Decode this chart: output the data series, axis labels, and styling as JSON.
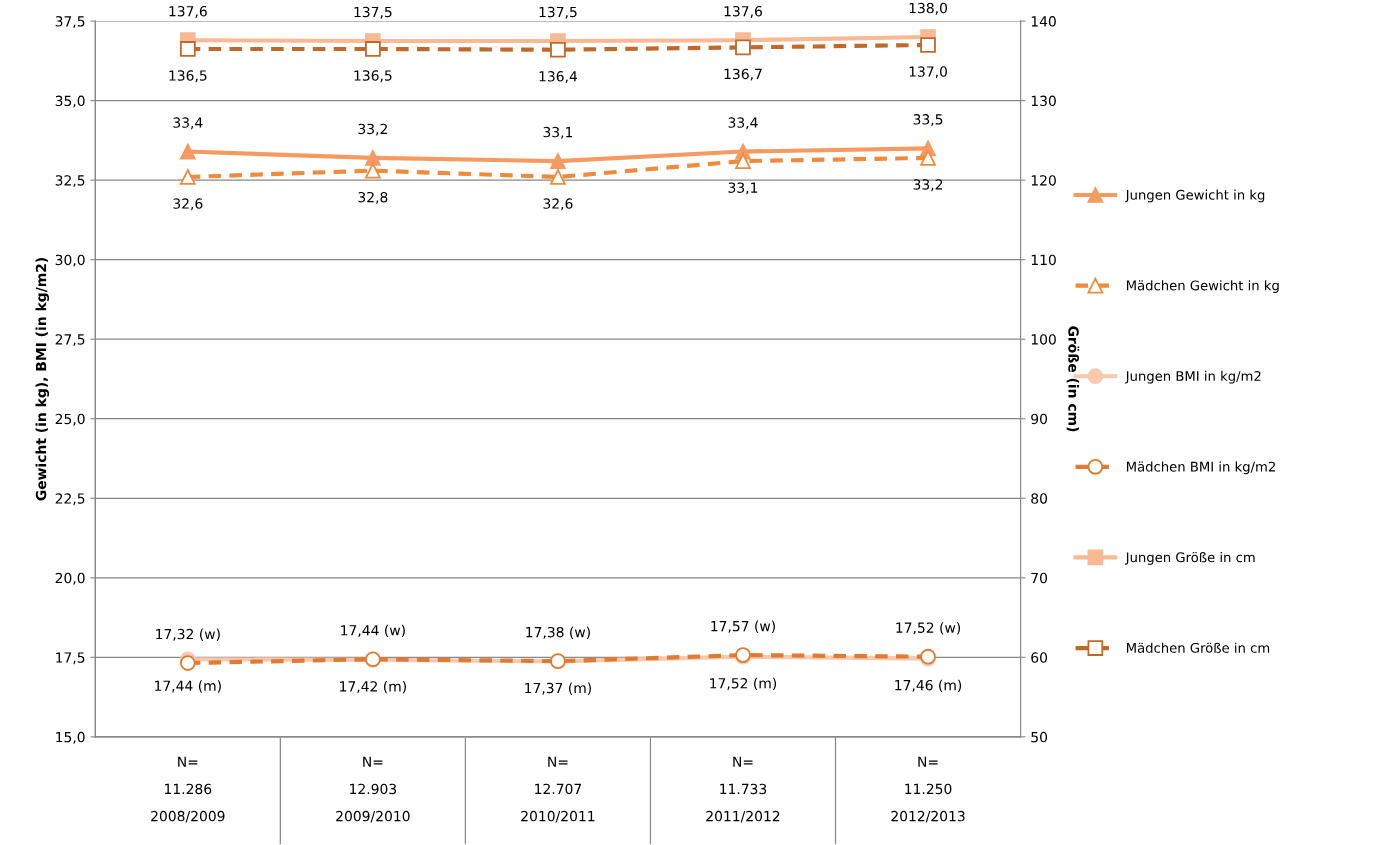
{
  "chart_data": {
    "type": "line",
    "ylabel": "Gewicht (in kg), BMI (in kg/m2)",
    "y2label": "Größe (in cm)",
    "categories": [
      "N=\n11.286\n2008/2009",
      "N=\n12.903\n2009/2010",
      "N=\n12.707\n2010/2011",
      "N=\n11.733\n2011/2012",
      "N=\n11.250\n2012/2013"
    ],
    "ylim": [
      15,
      37.5
    ],
    "yticks": [
      {
        "value": 15,
        "label": "15,0"
      },
      {
        "value": 17.5,
        "label": "17,5"
      },
      {
        "value": 20,
        "label": "20,0"
      },
      {
        "value": 22.5,
        "label": "22,5"
      },
      {
        "value": 25,
        "label": "25,0"
      },
      {
        "value": 27.5,
        "label": "27,5"
      },
      {
        "value": 30,
        "label": "30,0"
      },
      {
        "value": 32.5,
        "label": "32,5"
      },
      {
        "value": 35,
        "label": "35,0"
      },
      {
        "value": 37.5,
        "label": "37,5"
      }
    ],
    "y2lim": [
      50,
      140
    ],
    "y2ticks": [
      50,
      60,
      70,
      80,
      90,
      100,
      110,
      120,
      130,
      140
    ],
    "grid": "y",
    "legend": "right",
    "series": [
      {
        "name": "Jungen Gewicht in kg",
        "color": "#f59b62",
        "marker": "triangle",
        "line_style": "solid",
        "values": [
          33.4,
          33.2,
          33.1,
          33.4,
          33.5
        ],
        "value_labels": [
          "33,4",
          "33,2",
          "33,1",
          "33,4",
          "33,5"
        ]
      },
      {
        "name": "Mädchen Gewicht in kg",
        "color": "#f08a3c",
        "marker": "triangle",
        "line_style": "dashed",
        "values": [
          32.6,
          32.8,
          32.6,
          33.1,
          33.2
        ],
        "value_labels": [
          "32,6",
          "32,8",
          "32,6",
          "33,1",
          "33,2"
        ]
      },
      {
        "name": "Jungen BMI in kg/m2",
        "color": "#f9c9ae",
        "marker": "circle",
        "line_style": "solid",
        "values": [
          17.44,
          17.42,
          17.37,
          17.52,
          17.46
        ],
        "value_labels": [
          "17,44 (m)",
          "17,42 (m)",
          "17,37 (m)",
          "17,52 (m)",
          "17,46 (m)"
        ]
      },
      {
        "name": "Mädchen BMI in kg/m2",
        "color": "#e07b32",
        "marker": "circle",
        "line_style": "dashed",
        "values": [
          17.32,
          17.44,
          17.38,
          17.57,
          17.52
        ],
        "value_labels": [
          "17,32 (w)",
          "17,44 (w)",
          "17,38 (w)",
          "17,57 (w)",
          "17,52 (w)"
        ]
      },
      {
        "name": "Jungen Größe in cm",
        "color": "#f8b994",
        "marker": "square",
        "line_style": "solid",
        "axis": "y2",
        "values": [
          137.6,
          137.5,
          137.5,
          137.6,
          138.0
        ],
        "value_labels": [
          "137,6",
          "137,5",
          "137,5",
          "137,6",
          "138,0"
        ]
      },
      {
        "name": "Mädchen Größe in cm",
        "color": "#c0692a",
        "marker": "square",
        "line_style": "dashed",
        "axis": "y2",
        "values": [
          136.5,
          136.5,
          136.4,
          136.7,
          137.0
        ],
        "value_labels": [
          "136,5",
          "136,5",
          "136,4",
          "136,7",
          "137,0"
        ]
      }
    ]
  }
}
